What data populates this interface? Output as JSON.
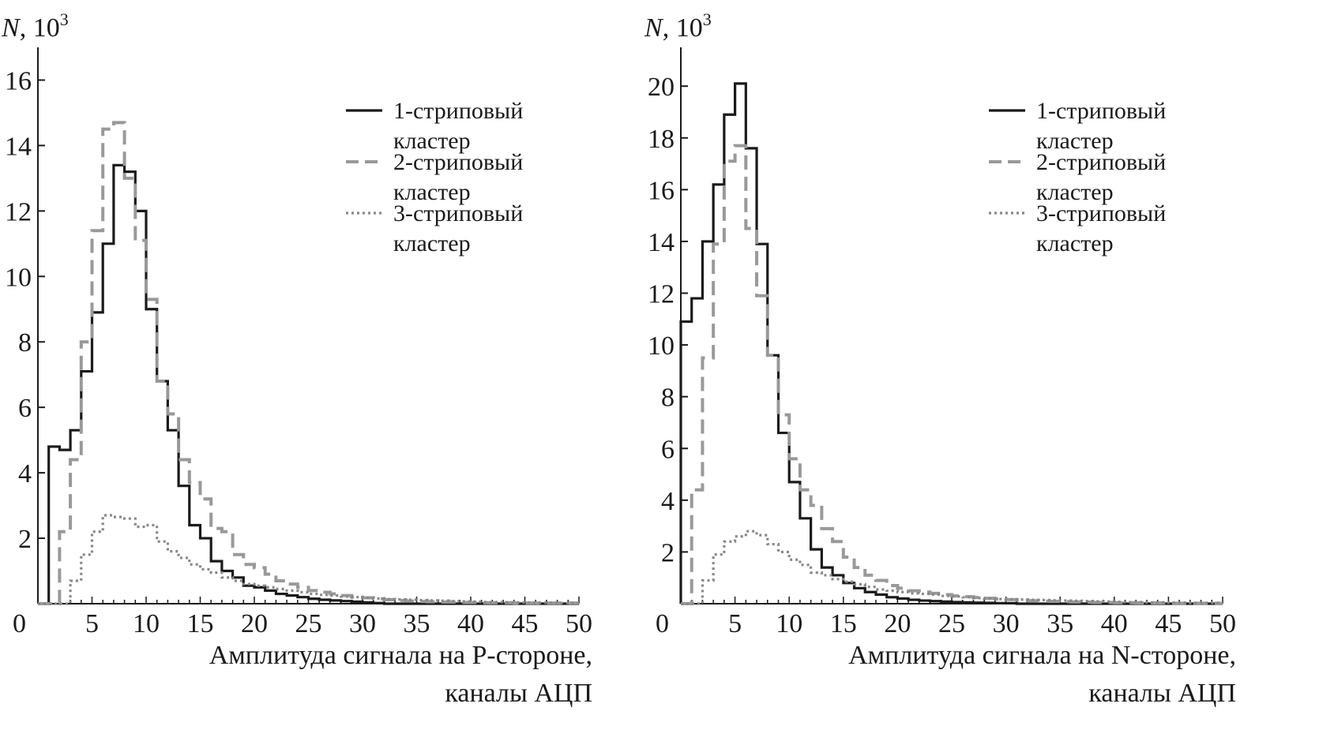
{
  "chart_data": [
    {
      "type": "histogram",
      "ylabel_var": "N",
      "ylabel_unit": ", 10",
      "ylabel_exp": "3",
      "xlabel_line1": "Амплитуда сигнала на P-стороне,",
      "xlabel_line2": "каналы АЦП",
      "xlim": [
        0,
        50
      ],
      "ylim": [
        0,
        17
      ],
      "x_ticks": [
        "0",
        "5",
        "10",
        "15",
        "20",
        "25",
        "30",
        "35",
        "40",
        "45",
        "50"
      ],
      "y_ticks": [
        "2",
        "4",
        "6",
        "8",
        "10",
        "12",
        "14",
        "16"
      ],
      "bin_width": 1,
      "x_start": 0,
      "series": [
        {
          "name": "1-стриповый кластер",
          "style": "solid",
          "color": "#1a1a1a",
          "values": [
            0,
            4.8,
            4.7,
            5.3,
            7.1,
            8.9,
            11.0,
            13.4,
            13.2,
            12.0,
            9.0,
            6.8,
            5.3,
            3.6,
            2.4,
            2.0,
            1.3,
            1.0,
            0.8,
            0.55,
            0.5,
            0.4,
            0.3,
            0.25,
            0.2,
            0.15,
            0.12,
            0.1,
            0.08,
            0.06,
            0.04,
            0.02,
            0,
            0,
            0,
            0,
            0,
            0,
            0,
            0,
            0,
            0,
            0,
            0,
            0,
            0,
            0,
            0,
            0,
            0
          ]
        },
        {
          "name": "2-стриповый кластер",
          "style": "dashed",
          "color": "#999999",
          "values": [
            0,
            0,
            2.2,
            4.4,
            8.0,
            11.4,
            14.5,
            14.7,
            13.0,
            11.1,
            9.3,
            6.8,
            5.8,
            4.4,
            3.7,
            3.2,
            2.3,
            2.2,
            1.5,
            1.2,
            1.1,
            0.9,
            0.7,
            0.6,
            0.5,
            0.4,
            0.35,
            0.3,
            0.25,
            0.2,
            0.18,
            0.15,
            0.12,
            0.1,
            0.08,
            0.07,
            0.06,
            0.05,
            0.05,
            0.04,
            0.04,
            0.03,
            0.03,
            0.03,
            0.02,
            0.02,
            0.02,
            0.02,
            0.02,
            0.02
          ]
        },
        {
          "name": "3-стриповый кластер",
          "style": "dotted",
          "color": "#888888",
          "values": [
            0,
            0,
            0,
            0.7,
            1.5,
            2.2,
            2.7,
            2.65,
            2.6,
            2.35,
            2.4,
            1.9,
            1.6,
            1.4,
            1.2,
            1.05,
            0.95,
            0.8,
            0.7,
            0.6,
            0.55,
            0.5,
            0.45,
            0.4,
            0.35,
            0.3,
            0.27,
            0.25,
            0.22,
            0.2,
            0.18,
            0.16,
            0.14,
            0.13,
            0.12,
            0.11,
            0.1,
            0.09,
            0.08,
            0.07,
            0.06,
            0.05,
            0.05,
            0.04,
            0.04,
            0.03,
            0.03,
            0.03,
            0.02,
            0.02
          ]
        }
      ],
      "legend_position": "top-right",
      "legend_rows": [
        {
          "line1": "1-стриповый",
          "line2": "кластер"
        },
        {
          "line1": "2-стриповый",
          "line2": "кластер"
        },
        {
          "line1": "3-стриповый",
          "line2": "кластер"
        }
      ]
    },
    {
      "type": "histogram",
      "ylabel_var": "N",
      "ylabel_unit": ", 10",
      "ylabel_exp": "3",
      "xlabel_line1": "Амплитуда сигнала на N-стороне,",
      "xlabel_line2": "каналы АЦП",
      "xlim": [
        0,
        50
      ],
      "ylim": [
        0,
        21.5
      ],
      "x_ticks": [
        "0",
        "5",
        "10",
        "15",
        "20",
        "25",
        "30",
        "35",
        "40",
        "45",
        "50"
      ],
      "y_ticks": [
        "2",
        "4",
        "6",
        "8",
        "10",
        "12",
        "14",
        "16",
        "18",
        "20"
      ],
      "bin_width": 1,
      "x_start": 0,
      "series": [
        {
          "name": "1-стриповый кластер",
          "style": "solid",
          "color": "#1a1a1a",
          "values": [
            10.9,
            11.8,
            14.0,
            16.2,
            18.9,
            20.1,
            17.6,
            13.9,
            9.6,
            6.6,
            4.7,
            3.3,
            2.1,
            1.4,
            1.1,
            0.8,
            0.6,
            0.45,
            0.35,
            0.25,
            0.2,
            0.15,
            0.12,
            0.1,
            0.08,
            0.06,
            0.05,
            0.04,
            0.03,
            0.02,
            0.02,
            0,
            0,
            0,
            0,
            0,
            0,
            0,
            0,
            0,
            0,
            0,
            0,
            0,
            0,
            0,
            0,
            0,
            0,
            0
          ]
        },
        {
          "name": "2-стриповый кластер",
          "style": "dashed",
          "color": "#999999",
          "values": [
            0,
            4.4,
            9.5,
            13.9,
            17.1,
            17.7,
            14.5,
            11.9,
            9.6,
            7.3,
            5.6,
            4.4,
            3.8,
            2.9,
            2.4,
            1.8,
            1.4,
            1.1,
            0.9,
            0.7,
            0.6,
            0.5,
            0.45,
            0.4,
            0.35,
            0.3,
            0.27,
            0.24,
            0.21,
            0.18,
            0.16,
            0.14,
            0.12,
            0.1,
            0.09,
            0.08,
            0.07,
            0.06,
            0.05,
            0.05,
            0.04,
            0.04,
            0.03,
            0.03,
            0.03,
            0.02,
            0.02,
            0.02,
            0.02,
            0.02
          ]
        },
        {
          "name": "3-стриповый кластер",
          "style": "dotted",
          "color": "#888888",
          "values": [
            0,
            0,
            0.9,
            1.9,
            2.4,
            2.6,
            2.8,
            2.65,
            2.3,
            2.0,
            1.7,
            1.5,
            1.2,
            1.1,
            0.95,
            0.85,
            0.75,
            0.65,
            0.55,
            0.5,
            0.45,
            0.4,
            0.38,
            0.35,
            0.3,
            0.28,
            0.25,
            0.22,
            0.2,
            0.18,
            0.17,
            0.16,
            0.15,
            0.14,
            0.13,
            0.12,
            0.11,
            0.1,
            0.09,
            0.08,
            0.07,
            0.06,
            0.06,
            0.05,
            0.05,
            0.04,
            0.04,
            0.03,
            0.03,
            0.03
          ]
        }
      ],
      "legend_position": "top-right",
      "legend_rows": [
        {
          "line1": "1-стриповый",
          "line2": "кластер"
        },
        {
          "line1": "2-стриповый",
          "line2": "кластер"
        },
        {
          "line1": "3-стриповый",
          "line2": "кластер"
        }
      ]
    }
  ]
}
